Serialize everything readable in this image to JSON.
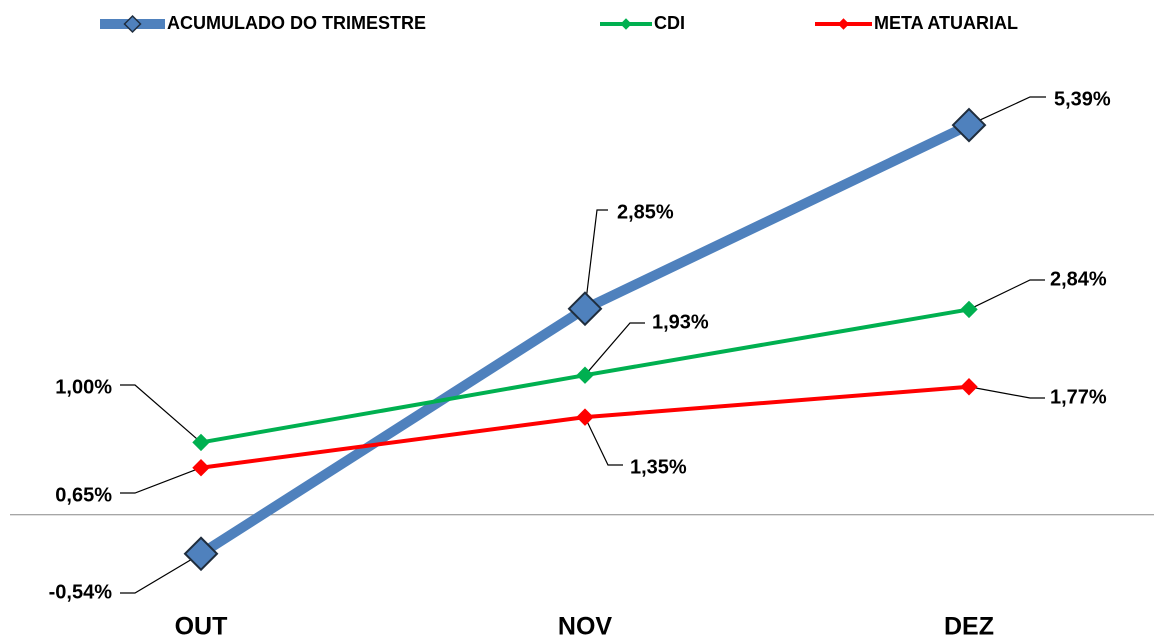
{
  "chart_data": {
    "type": "line",
    "categories": [
      "OUT",
      "NOV",
      "DEZ"
    ],
    "series": [
      {
        "name": "ACUMULADO DO TRIMESTRE",
        "color": "#4f81bd",
        "values": [
          -0.54,
          2.85,
          5.39
        ],
        "value_labels": [
          "-0,54%",
          "2,85%",
          "5,39%"
        ]
      },
      {
        "name": "CDI",
        "color": "#00b050",
        "values": [
          1.0,
          1.93,
          2.84
        ],
        "value_labels": [
          "1,00%",
          "1,93%",
          "2,84%"
        ]
      },
      {
        "name": "META ATUARIAL",
        "color": "#ff0000",
        "values": [
          0.65,
          1.35,
          1.77
        ],
        "value_labels": [
          "0,65%",
          "1,35%",
          "1,77%"
        ]
      }
    ],
    "ylim": [
      -1,
      6
    ],
    "legend": "top"
  }
}
